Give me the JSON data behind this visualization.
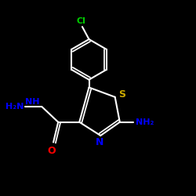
{
  "bg_color": "#000000",
  "text_colors": {
    "Cl": "#00cc00",
    "NH": "#0000ff",
    "H2N": "#0000ff",
    "O": "#ff0000",
    "S": "#ccaa00",
    "N": "#0000ff",
    "NH2": "#0000ff"
  },
  "line_color": "#ffffff",
  "line_width": 1.5,
  "figsize": [
    2.5,
    2.5
  ],
  "dpi": 100
}
